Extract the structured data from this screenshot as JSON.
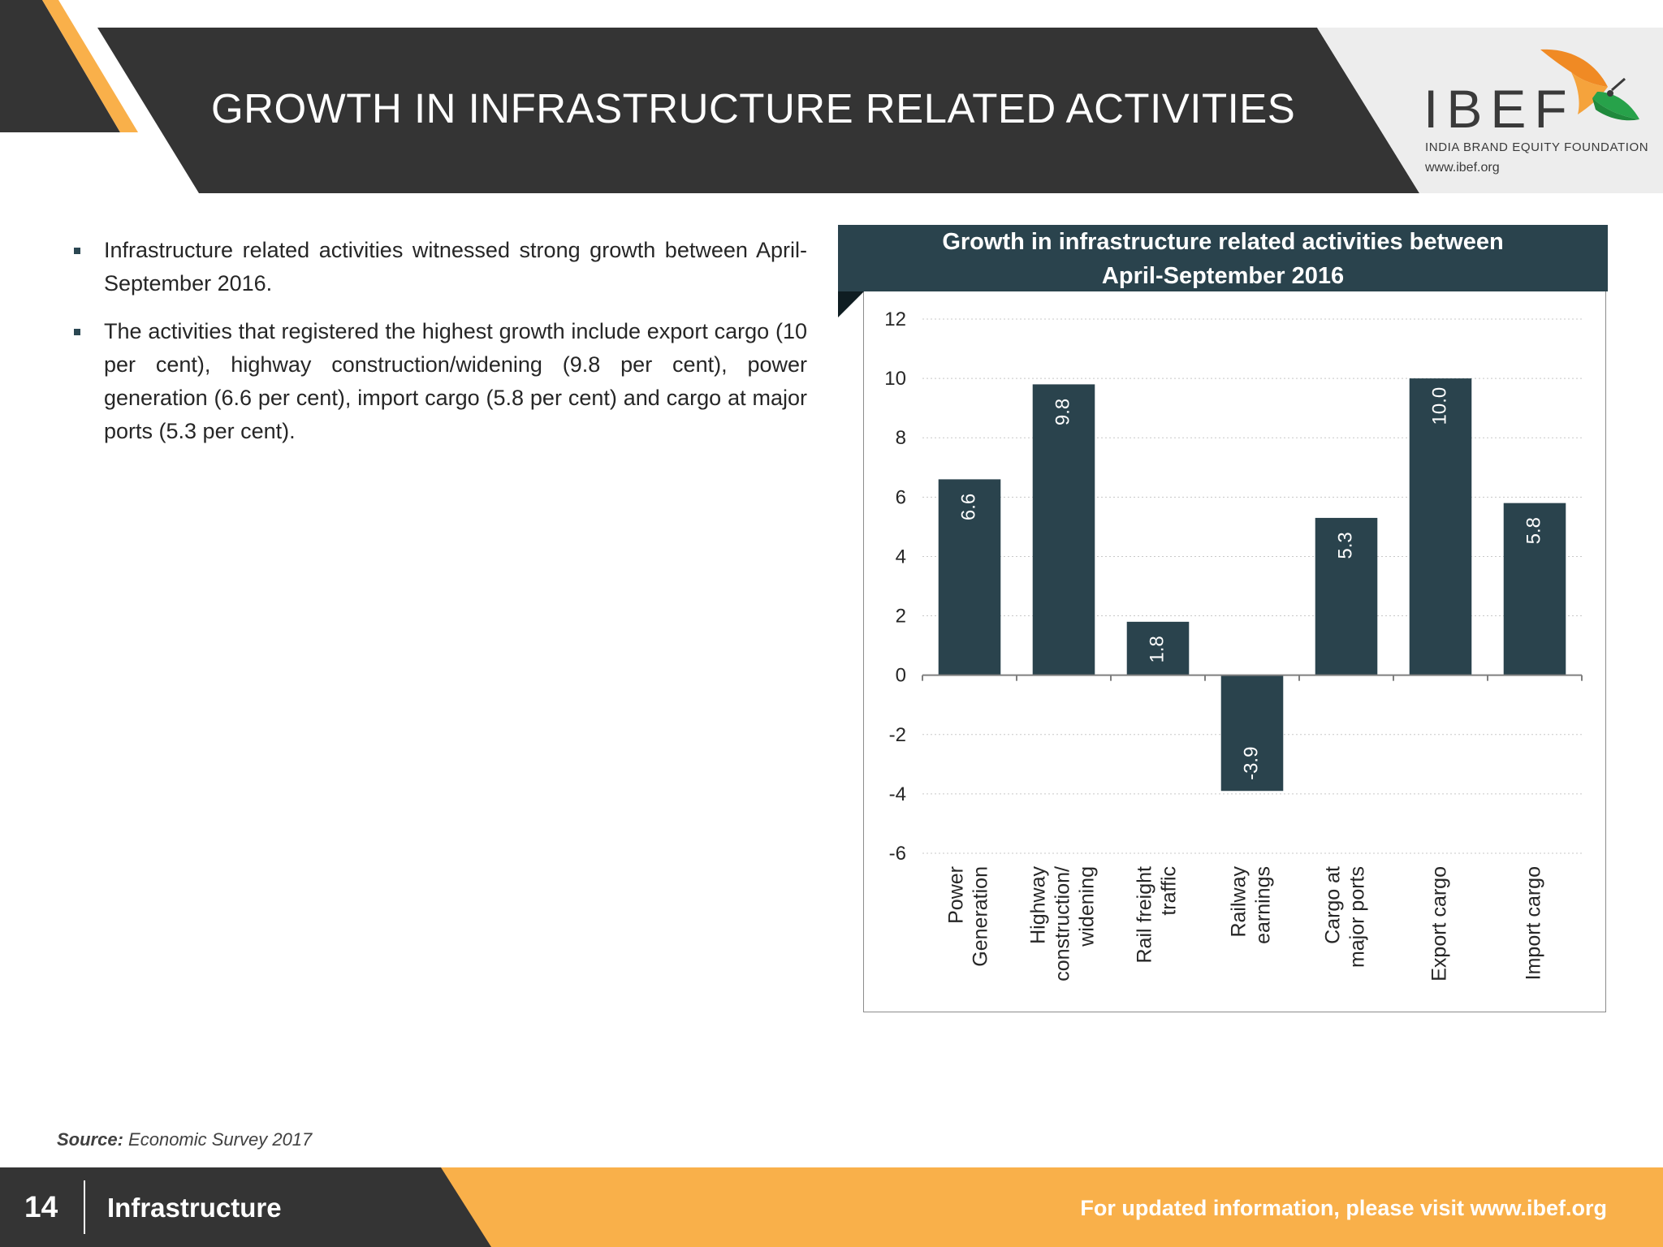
{
  "header": {
    "title": "GROWTH IN INFRASTRUCTURE RELATED ACTIVITIES"
  },
  "logo": {
    "word": "IBEF",
    "subtitle": "INDIA BRAND EQUITY FOUNDATION",
    "url": "www.ibef.org"
  },
  "bullets": [
    "Infrastructure related activities witnessed strong growth between April-September 2016.",
    "The activities that registered the highest growth include export cargo (10 per cent), highway construction/widening (9.8 per cent), power generation (6.6 per cent), import cargo (5.8 per cent) and cargo at major ports (5.3 per cent)."
  ],
  "chart_data": {
    "type": "bar",
    "title": "Growth in infrastructure related activities between April-September 2016",
    "title_lines": [
      "Growth in infrastructure related activities between",
      "April-September 2016"
    ],
    "categories": [
      [
        "Power",
        "Generation"
      ],
      [
        "Highway",
        "construction/",
        "widening"
      ],
      [
        "Rail freight",
        "traffic"
      ],
      [
        "Railway",
        "earnings"
      ],
      [
        "Cargo at",
        "major ports"
      ],
      [
        "Export cargo"
      ],
      [
        "Import cargo"
      ]
    ],
    "values": [
      6.6,
      9.8,
      1.8,
      -3.9,
      5.3,
      10.0,
      5.8
    ],
    "value_labels": [
      "6.6",
      "9.8",
      "1.8",
      "-3.9",
      "5.3",
      "10.0",
      "5.8"
    ],
    "ylim": [
      -6,
      12
    ],
    "yticks": [
      12,
      10,
      8,
      6,
      4,
      2,
      0,
      -2,
      -4,
      -6
    ],
    "ylabel": "",
    "xlabel": "",
    "grid": true,
    "bar_color": "#2a434d",
    "label_color": "#ffffff"
  },
  "source": {
    "label": "Source:",
    "text": "Economic Survey 2017"
  },
  "footer": {
    "page": "14",
    "section": "Infrastructure",
    "link_text": "For updated information, please visit www.ibef.org"
  },
  "colors": {
    "dark": "#343434",
    "accent_orange": "#f9b04a",
    "chart_dark": "#2a434d"
  }
}
